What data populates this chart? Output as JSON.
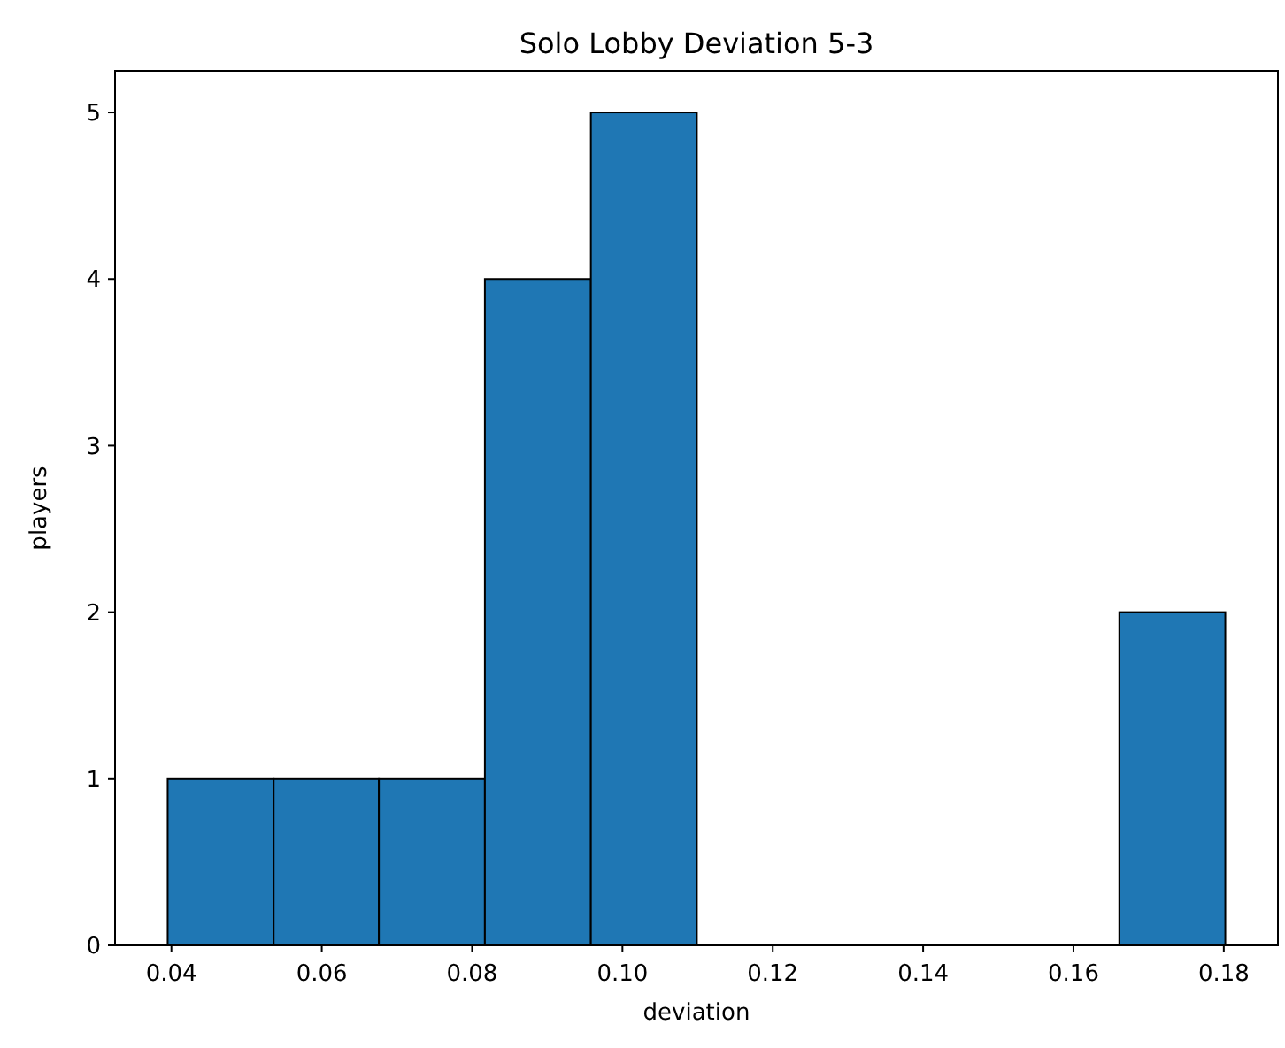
{
  "chart_data": {
    "type": "histogram",
    "title": "Solo Lobby Deviation 5-3",
    "xlabel": "deviation",
    "ylabel": "players",
    "bins": [
      0.0395,
      0.0536,
      0.0676,
      0.0817,
      0.0958,
      0.1099,
      0.1661,
      0.1802
    ],
    "values": [
      1,
      1,
      1,
      4,
      5,
      0,
      2
    ],
    "color": "#1f77b4",
    "xlim": [
      0.0325,
      0.1872
    ],
    "xticks": [
      {
        "value": 0.04,
        "label": "0.04"
      },
      {
        "value": 0.06,
        "label": "0.06"
      },
      {
        "value": 0.08,
        "label": "0.08"
      },
      {
        "value": 0.1,
        "label": "0.10"
      },
      {
        "value": 0.12,
        "label": "0.12"
      },
      {
        "value": 0.14,
        "label": "0.14"
      },
      {
        "value": 0.16,
        "label": "0.16"
      },
      {
        "value": 0.18,
        "label": "0.18"
      }
    ],
    "ylim": [
      0,
      5.25
    ],
    "yticks": [
      0,
      1,
      2,
      3,
      4,
      5
    ]
  }
}
